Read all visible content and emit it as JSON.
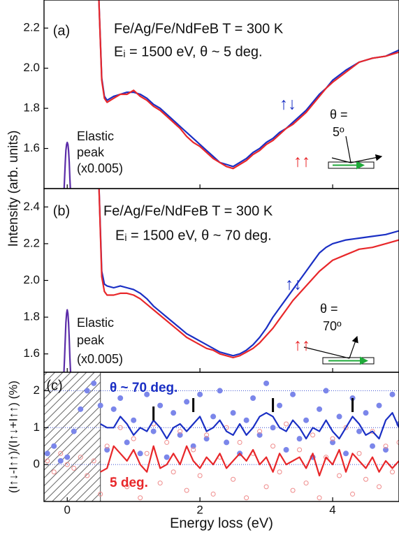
{
  "chart_data": [
    {
      "type": "line",
      "panel_label": "(a)",
      "title": "Fe/Ag/Fe/NdFeB T = 300 K",
      "subtitle": "Eᵢ = 1500 eV, θ ~ 5 deg.",
      "ylabel": "Intensity (arb. units)",
      "annotations": [
        "Elastic",
        "peak",
        "(x0.005)",
        "θ =",
        "5º"
      ],
      "xlim": [
        -0.35,
        5.0
      ],
      "xticks": [
        0,
        2,
        4
      ],
      "ylim": [
        1.4,
        2.34
      ],
      "yticks": [
        1.6,
        1.8,
        {
          "value": 2,
          "label": "2.0"
        },
        2.2
      ],
      "series": [
        {
          "name": "↑↓",
          "color": "#1a2fc4",
          "x": [
            0.47,
            0.52,
            0.56,
            0.6,
            0.7,
            0.8,
            0.9,
            1.0,
            1.1,
            1.2,
            1.3,
            1.4,
            1.5,
            1.6,
            1.7,
            1.8,
            1.9,
            2.0,
            2.1,
            2.2,
            2.3,
            2.4,
            2.5,
            2.6,
            2.7,
            2.8,
            2.9,
            3.0,
            3.1,
            3.2,
            3.3,
            3.4,
            3.5,
            3.6,
            3.7,
            3.8,
            3.9,
            4.0,
            4.2,
            4.4,
            4.6,
            4.8,
            5.0
          ],
          "values": [
            2.4,
            1.95,
            1.86,
            1.84,
            1.86,
            1.87,
            1.88,
            1.88,
            1.87,
            1.85,
            1.82,
            1.8,
            1.77,
            1.74,
            1.71,
            1.68,
            1.65,
            1.62,
            1.59,
            1.56,
            1.53,
            1.52,
            1.51,
            1.53,
            1.55,
            1.58,
            1.6,
            1.63,
            1.65,
            1.68,
            1.7,
            1.73,
            1.76,
            1.79,
            1.83,
            1.87,
            1.9,
            1.94,
            1.99,
            2.03,
            2.05,
            2.06,
            2.09
          ]
        },
        {
          "name": "↑↑",
          "color": "#e8272a",
          "x": [
            0.47,
            0.52,
            0.56,
            0.6,
            0.7,
            0.8,
            0.9,
            1.0,
            1.1,
            1.2,
            1.3,
            1.4,
            1.5,
            1.6,
            1.7,
            1.8,
            1.9,
            2.0,
            2.1,
            2.2,
            2.3,
            2.4,
            2.5,
            2.6,
            2.7,
            2.8,
            2.9,
            3.0,
            3.1,
            3.2,
            3.3,
            3.4,
            3.5,
            3.6,
            3.7,
            3.8,
            3.9,
            4.0,
            4.2,
            4.4,
            4.6,
            4.8,
            5.0
          ],
          "values": [
            2.4,
            1.94,
            1.85,
            1.83,
            1.85,
            1.87,
            1.87,
            1.89,
            1.86,
            1.84,
            1.81,
            1.79,
            1.76,
            1.73,
            1.7,
            1.66,
            1.63,
            1.61,
            1.58,
            1.55,
            1.53,
            1.51,
            1.5,
            1.52,
            1.54,
            1.57,
            1.59,
            1.62,
            1.64,
            1.67,
            1.7,
            1.72,
            1.75,
            1.78,
            1.82,
            1.86,
            1.9,
            1.93,
            1.98,
            2.03,
            2.05,
            2.06,
            2.08
          ]
        },
        {
          "color": "#5b2ca8",
          "x": [
            -0.05,
            -0.04,
            -0.03,
            -0.02,
            -0.01,
            0,
            0.01,
            0.02,
            0.03,
            0.04,
            0.05
          ],
          "values": [
            1.38,
            1.45,
            1.53,
            1.59,
            1.62,
            1.63,
            1.62,
            1.59,
            1.53,
            1.45,
            1.38
          ]
        }
      ]
    },
    {
      "type": "line",
      "panel_label": "(b)",
      "title": "Fe/Ag/Fe/NdFeB T = 300 K",
      "subtitle": "Eᵢ = 1500 eV, θ ~ 70 deg.",
      "annotations": [
        "Elastic",
        "peak",
        "(x0.005)",
        "θ =",
        "70º"
      ],
      "xlim": [
        -0.35,
        5.0
      ],
      "xticks": [
        0,
        2,
        4
      ],
      "ylim": [
        1.5,
        2.5
      ],
      "yticks": [
        1.6,
        1.8,
        {
          "value": 2,
          "label": "2.0"
        },
        2.2,
        2.4
      ],
      "series": [
        {
          "name": "↑↓",
          "color": "#1a2fc4",
          "x": [
            0.47,
            0.52,
            0.56,
            0.6,
            0.7,
            0.8,
            0.9,
            1.0,
            1.1,
            1.2,
            1.3,
            1.4,
            1.5,
            1.6,
            1.7,
            1.8,
            1.9,
            2.0,
            2.1,
            2.2,
            2.3,
            2.4,
            2.5,
            2.6,
            2.7,
            2.8,
            2.9,
            3.0,
            3.1,
            3.2,
            3.3,
            3.4,
            3.5,
            3.6,
            3.7,
            3.8,
            3.9,
            4.0,
            4.2,
            4.4,
            4.6,
            4.8,
            5.0
          ],
          "values": [
            2.6,
            2.05,
            1.98,
            1.97,
            1.96,
            1.97,
            1.96,
            1.95,
            1.93,
            1.9,
            1.86,
            1.83,
            1.8,
            1.77,
            1.74,
            1.71,
            1.69,
            1.67,
            1.65,
            1.63,
            1.61,
            1.6,
            1.59,
            1.6,
            1.62,
            1.65,
            1.69,
            1.74,
            1.8,
            1.85,
            1.9,
            1.95,
            2.0,
            2.05,
            2.1,
            2.15,
            2.18,
            2.2,
            2.22,
            2.23,
            2.24,
            2.25,
            2.27
          ]
        },
        {
          "name": "↑↑",
          "color": "#e8272a",
          "x": [
            0.47,
            0.52,
            0.56,
            0.6,
            0.7,
            0.8,
            0.9,
            1.0,
            1.1,
            1.2,
            1.3,
            1.4,
            1.5,
            1.6,
            1.7,
            1.8,
            1.9,
            2.0,
            2.1,
            2.2,
            2.3,
            2.4,
            2.5,
            2.6,
            2.7,
            2.8,
            2.9,
            3.0,
            3.1,
            3.2,
            3.3,
            3.4,
            3.5,
            3.6,
            3.7,
            3.8,
            3.9,
            4.0,
            4.2,
            4.4,
            4.6,
            4.8,
            5.0
          ],
          "values": [
            2.6,
            2.02,
            1.94,
            1.92,
            1.92,
            1.93,
            1.93,
            1.92,
            1.9,
            1.87,
            1.84,
            1.81,
            1.78,
            1.75,
            1.72,
            1.69,
            1.67,
            1.65,
            1.63,
            1.62,
            1.6,
            1.59,
            1.58,
            1.59,
            1.61,
            1.63,
            1.66,
            1.7,
            1.74,
            1.79,
            1.84,
            1.89,
            1.93,
            1.97,
            2.01,
            2.05,
            2.08,
            2.11,
            2.14,
            2.17,
            2.18,
            2.2,
            2.22
          ]
        },
        {
          "color": "#5b2ca8",
          "x": [
            -0.05,
            -0.04,
            -0.03,
            -0.02,
            -0.01,
            0,
            0.01,
            0.02,
            0.03,
            0.04,
            0.05
          ],
          "values": [
            1.5,
            1.58,
            1.68,
            1.77,
            1.82,
            1.84,
            1.82,
            1.77,
            1.68,
            1.58,
            1.5
          ]
        }
      ]
    },
    {
      "type": "line",
      "panel_label": "(c)",
      "ylabel": "(I↑↓-I↑↑)/(I↑↓+I↑↑) (%)",
      "xlabel": "Energy loss (eV)",
      "xlim": [
        -0.35,
        5.0
      ],
      "xticks": [
        0,
        2,
        4
      ],
      "ylim": [
        -1,
        2.5
      ],
      "yticks": [
        0,
        1,
        2
      ],
      "grid": true,
      "shaded_range": [
        -0.35,
        0.5
      ],
      "marker_x": [
        1.3,
        1.9,
        3.1,
        4.3
      ],
      "series": [
        {
          "type": "scatter",
          "marker": "filled",
          "color": "#7b86ea",
          "x": [
            -0.3,
            -0.2,
            -0.1,
            0,
            0.1,
            0.2,
            0.3,
            0.4,
            0.5,
            0.6,
            0.7,
            0.8,
            0.9,
            1.0,
            1.1,
            1.2,
            1.3,
            1.4,
            1.5,
            1.6,
            1.7,
            1.8,
            1.9,
            2.0,
            2.1,
            2.2,
            2.3,
            2.4,
            2.5,
            2.6,
            2.7,
            2.8,
            2.9,
            3.0,
            3.1,
            3.2,
            3.3,
            3.4,
            3.5,
            3.6,
            3.7,
            3.8,
            3.9,
            4.0,
            4.1,
            4.2,
            4.3,
            4.4,
            4.5,
            4.6,
            4.7,
            4.8,
            4.9,
            5.0
          ],
          "values": [
            0.3,
            0.5,
            0.1,
            0.2,
            0.9,
            1.5,
            2.0,
            2.2,
            1.6,
            0.4,
            1.5,
            1.8,
            0.6,
            1.2,
            0.3,
            1.9,
            0.9,
            1.6,
            0.2,
            1.4,
            0.8,
            1.7,
            0.5,
            1.9,
            0.7,
            1.3,
            2.0,
            0.6,
            1.4,
            0.3,
            1.2,
            1.8,
            0.8,
            2.2,
            1.0,
            1.6,
            0.4,
            1.9,
            0.7,
            1.2,
            0.2,
            1.5,
            2.0,
            0.6,
            1.3,
            0.3,
            1.8,
            0.9,
            1.4,
            0.5,
            1.6,
            0.4,
            1.9,
            1.1
          ]
        },
        {
          "type": "scatter",
          "marker": "open",
          "color": "#ef8a8a",
          "x": [
            -0.3,
            -0.2,
            -0.1,
            0,
            0.1,
            0.2,
            0.3,
            0.4,
            0.5,
            0.6,
            0.7,
            0.8,
            0.9,
            1.0,
            1.1,
            1.2,
            1.3,
            1.4,
            1.5,
            1.6,
            1.7,
            1.8,
            1.9,
            2.0,
            2.1,
            2.2,
            2.3,
            2.4,
            2.5,
            2.6,
            2.7,
            2.8,
            2.9,
            3.0,
            3.1,
            3.2,
            3.3,
            3.4,
            3.5,
            3.6,
            3.7,
            3.8,
            3.9,
            4.0,
            4.1,
            4.2,
            4.3,
            4.4,
            4.5,
            4.6,
            4.7,
            4.8,
            4.9,
            5.0
          ],
          "values": [
            0.1,
            -0.2,
            0.3,
            0.0,
            -0.1,
            0.2,
            -0.3,
            0.1,
            -0.8,
            0.5,
            -0.4,
            1.0,
            -0.6,
            0.7,
            -0.9,
            0.3,
            1.1,
            -0.5,
            0.6,
            -0.2,
            0.9,
            -0.7,
            0.4,
            -0.3,
            0.8,
            -0.8,
            0.2,
            1.0,
            -0.4,
            0.6,
            -0.9,
            0.3,
            0.9,
            -0.6,
            0.5,
            -0.2,
            1.1,
            -0.7,
            0.4,
            -0.5,
            0.8,
            -0.9,
            0.2,
            0.7,
            -0.3,
            1.0,
            -0.8,
            0.3,
            -0.4,
            0.9,
            -0.6,
            0.5,
            -0.2,
            0.6
          ]
        },
        {
          "name": "θ ~ 70 deg.",
          "color": "#1a2fc4",
          "x": [
            0.5,
            0.6,
            0.7,
            0.8,
            0.9,
            1.0,
            1.1,
            1.2,
            1.3,
            1.4,
            1.5,
            1.6,
            1.7,
            1.8,
            1.9,
            2.0,
            2.1,
            2.2,
            2.3,
            2.4,
            2.5,
            2.6,
            2.7,
            2.8,
            2.9,
            3.0,
            3.1,
            3.2,
            3.3,
            3.4,
            3.5,
            3.6,
            3.7,
            3.8,
            3.9,
            4.0,
            4.1,
            4.2,
            4.3,
            4.4,
            4.5,
            4.6,
            4.7,
            4.8,
            4.9,
            5.0
          ],
          "values": [
            1.1,
            1.0,
            1.0,
            1.3,
            1.1,
            0.8,
            1.0,
            0.9,
            1.2,
            1.0,
            0.7,
            1.0,
            1.1,
            0.9,
            1.1,
            1.3,
            0.9,
            1.0,
            1.2,
            0.9,
            0.8,
            1.1,
            0.8,
            1.0,
            1.3,
            1.4,
            1.3,
            1.0,
            0.9,
            1.2,
            1.0,
            0.7,
            1.0,
            0.9,
            1.2,
            0.9,
            0.7,
            1.0,
            1.3,
            1.1,
            0.8,
            0.9,
            0.7,
            1.2,
            1.4,
            1.0
          ]
        },
        {
          "name": "5 deg.",
          "color": "#e8272a",
          "x": [
            0.5,
            0.6,
            0.7,
            0.8,
            0.9,
            1.0,
            1.1,
            1.2,
            1.3,
            1.4,
            1.5,
            1.6,
            1.7,
            1.8,
            1.9,
            2.0,
            2.1,
            2.2,
            2.3,
            2.4,
            2.5,
            2.6,
            2.7,
            2.8,
            2.9,
            3.0,
            3.1,
            3.2,
            3.3,
            3.4,
            3.5,
            3.6,
            3.7,
            3.8,
            3.9,
            4.0,
            4.1,
            4.2,
            4.3,
            4.4,
            4.5,
            4.6,
            4.7,
            4.8,
            4.9,
            5.0
          ],
          "values": [
            -0.2,
            -0.1,
            0.5,
            0.3,
            0.1,
            0.4,
            0.0,
            -0.2,
            0.5,
            -0.1,
            0.0,
            0.3,
            0.0,
            0.5,
            0.1,
            -0.1,
            0.2,
            0.0,
            0.3,
            -0.1,
            0.1,
            0.3,
            0.1,
            0.4,
            0.0,
            0.2,
            -0.2,
            0.3,
            0.0,
            0.1,
            0.2,
            -0.1,
            0.3,
            -0.3,
            0.2,
            0.0,
            0.4,
            -0.2,
            0.3,
            0.1,
            -0.1,
            0.2,
            -0.2,
            0.1,
            -0.1,
            0.1
          ]
        }
      ]
    }
  ]
}
